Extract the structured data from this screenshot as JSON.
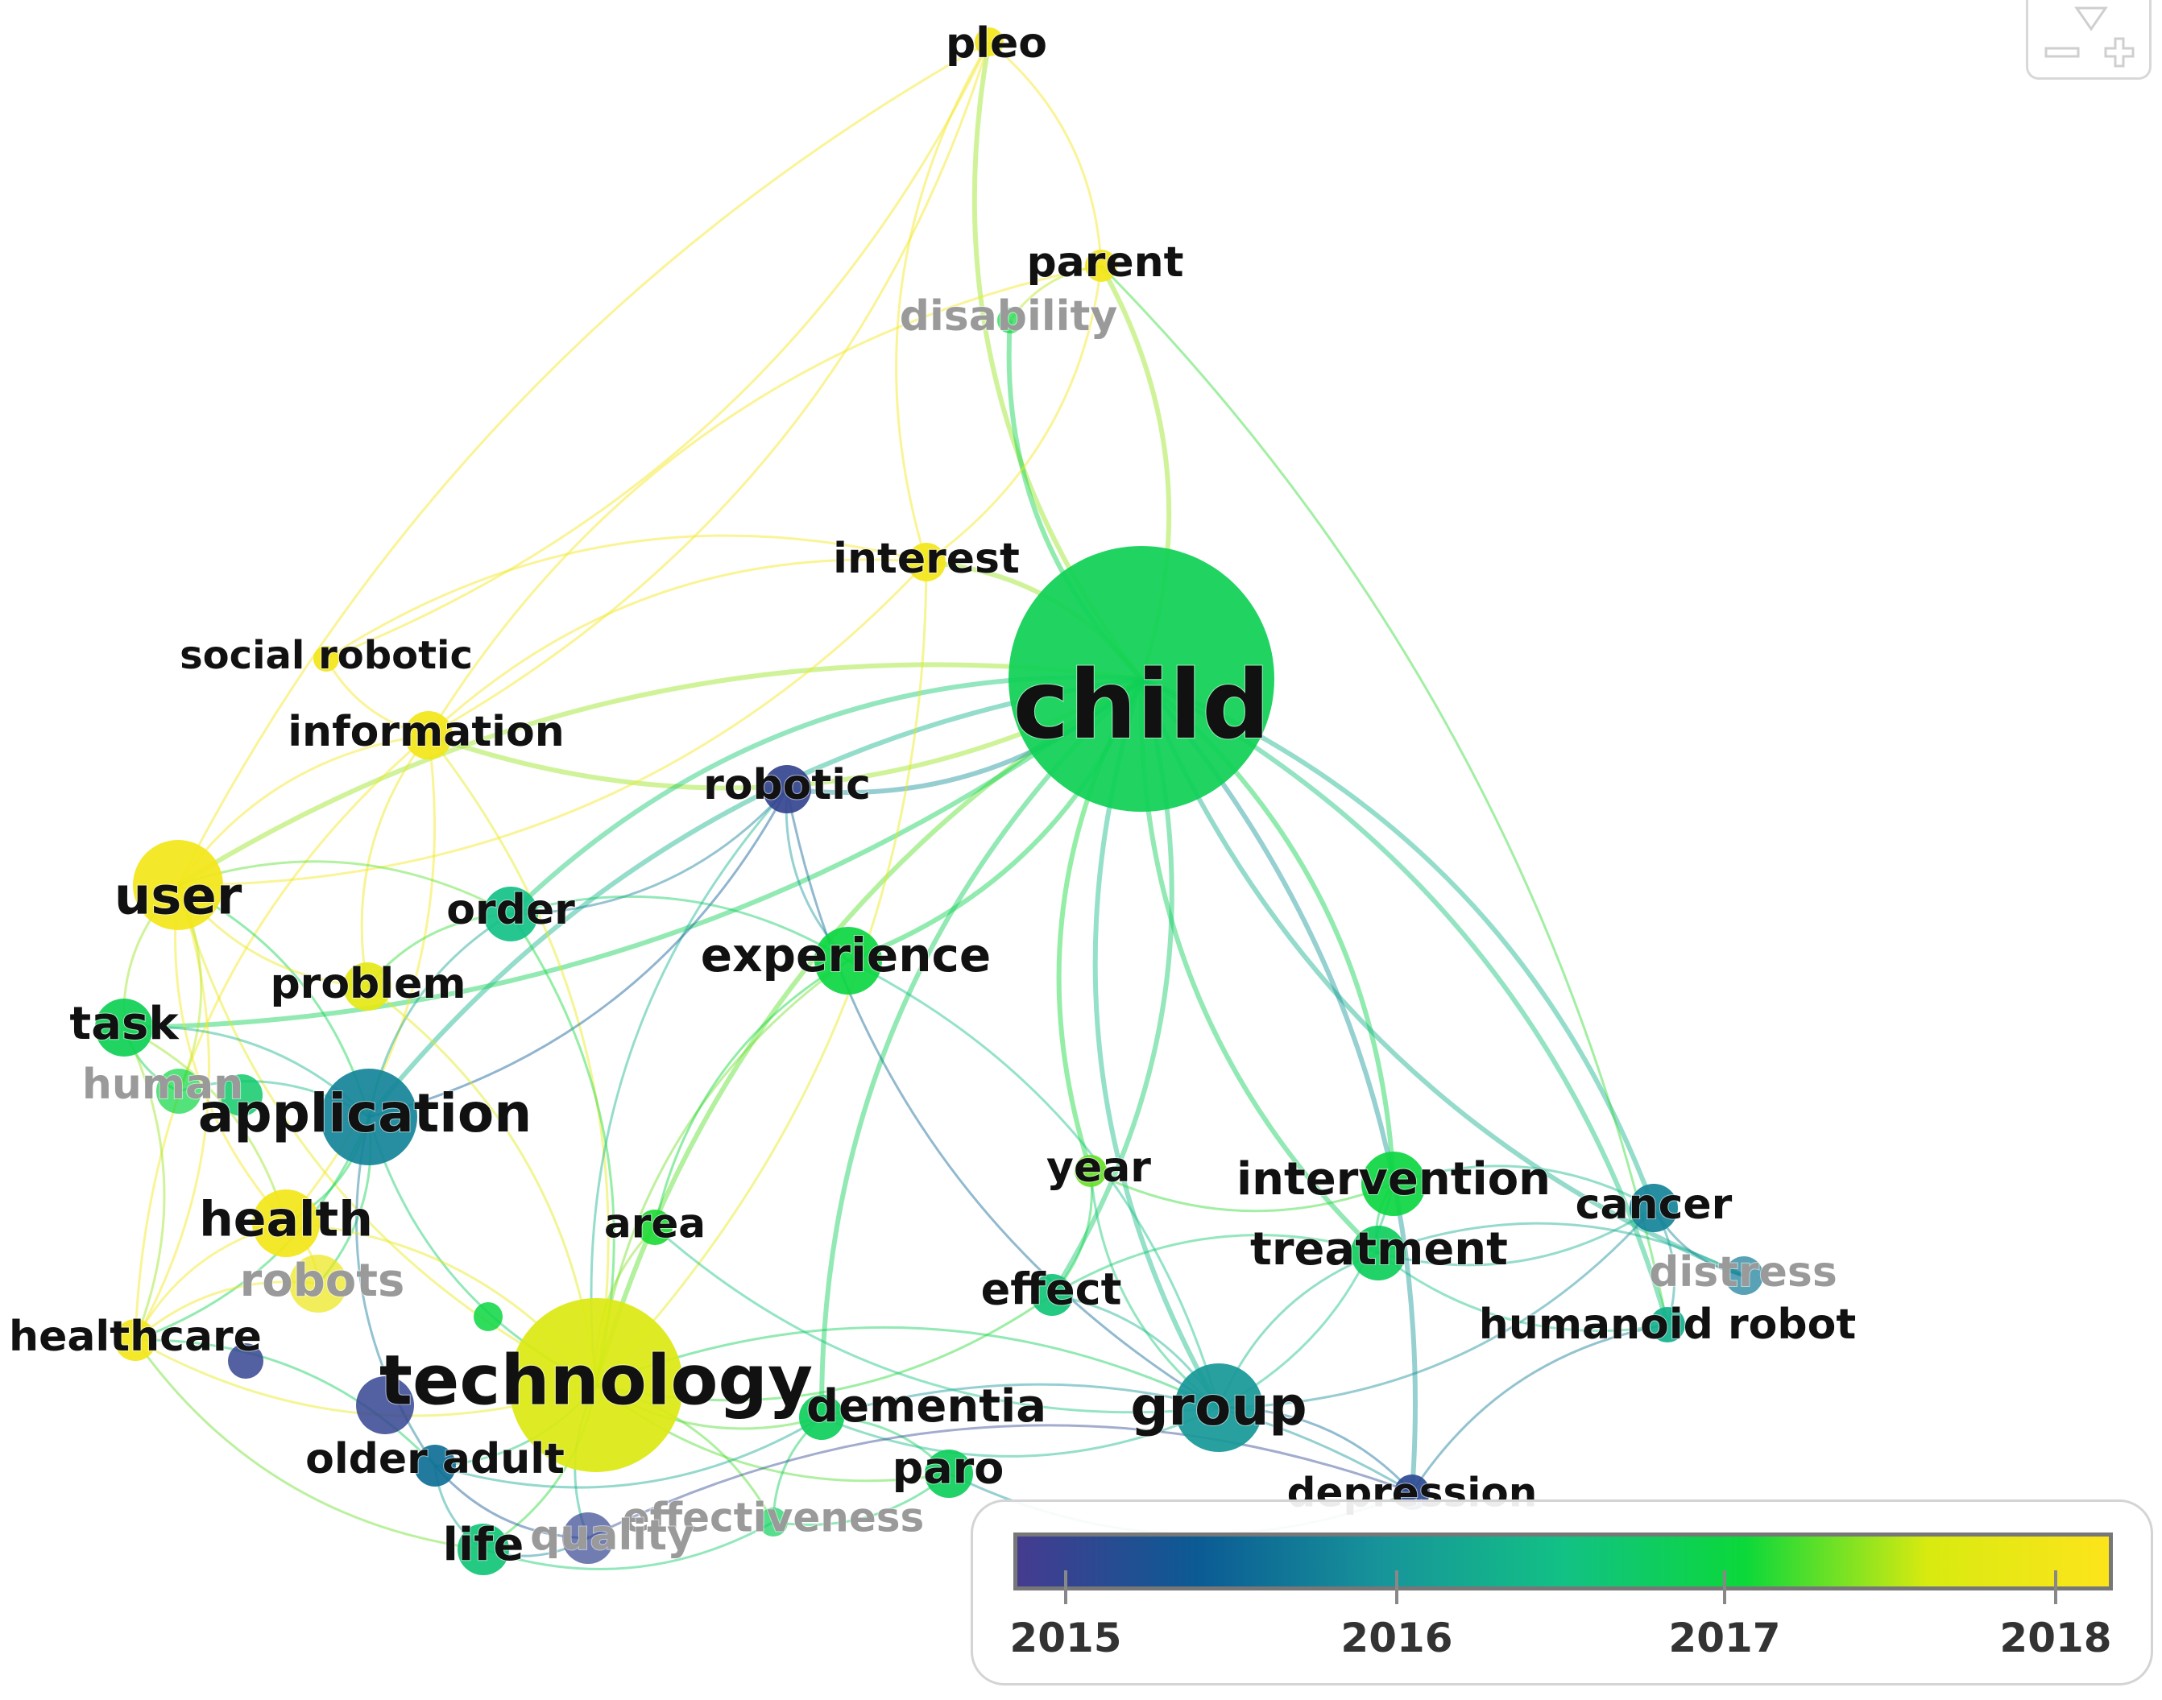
{
  "nodes": [
    {
      "id": "pleo",
      "label": "pleo",
      "year": 2018.0,
      "faded": false
    },
    {
      "id": "parent",
      "label": "parent",
      "year": 2018.0,
      "faded": false
    },
    {
      "id": "disability",
      "label": "disability",
      "year": 2017.0,
      "faded": true
    },
    {
      "id": "interest",
      "label": "interest",
      "year": 2018.0,
      "faded": false
    },
    {
      "id": "child",
      "label": "child",
      "year": 2016.85,
      "faded": false
    },
    {
      "id": "social-robotic",
      "label": "social robotic",
      "year": 2018.0,
      "faded": false
    },
    {
      "id": "information",
      "label": "information",
      "year": 2018.0,
      "faded": false
    },
    {
      "id": "robotic",
      "label": "robotic",
      "year": 2015.0,
      "faded": false
    },
    {
      "id": "user",
      "label": "user",
      "year": 2018.0,
      "faded": false
    },
    {
      "id": "order",
      "label": "order",
      "year": 2016.5,
      "faded": false
    },
    {
      "id": "experience",
      "label": "experience",
      "year": 2017.0,
      "faded": false
    },
    {
      "id": "problem",
      "label": "problem",
      "year": 2017.8,
      "faded": false
    },
    {
      "id": "task",
      "label": "task",
      "year": 2016.85,
      "faded": false
    },
    {
      "id": "human",
      "label": "human",
      "year": 2017.0,
      "faded": true
    },
    {
      "id": "application",
      "label": "application",
      "year": 2015.8,
      "faded": false
    },
    {
      "id": "year",
      "label": "year",
      "year": 2017.3,
      "faded": false
    },
    {
      "id": "intervention",
      "label": "intervention",
      "year": 2017.0,
      "faded": false
    },
    {
      "id": "cancer",
      "label": "cancer",
      "year": 2015.8,
      "faded": false
    },
    {
      "id": "health",
      "label": "health",
      "year": 2018.0,
      "faded": false
    },
    {
      "id": "area",
      "label": "area",
      "year": 2017.1,
      "faded": false
    },
    {
      "id": "treatment",
      "label": "treatment",
      "year": 2016.8,
      "faded": false
    },
    {
      "id": "distress",
      "label": "distress",
      "year": 2015.7,
      "faded": true
    },
    {
      "id": "robots",
      "label": "robots",
      "year": 2017.9,
      "faded": true
    },
    {
      "id": "effect",
      "label": "effect",
      "year": 2016.6,
      "faded": false
    },
    {
      "id": "humanoid-robot",
      "label": "humanoid robot",
      "year": 2016.3,
      "faded": false
    },
    {
      "id": "healthcare",
      "label": "healthcare",
      "year": 2018.0,
      "faded": false
    },
    {
      "id": "technology",
      "label": "technology",
      "year": 2017.65,
      "faded": false
    },
    {
      "id": "dementia",
      "label": "dementia",
      "year": 2016.8,
      "faded": false
    },
    {
      "id": "group",
      "label": "group",
      "year": 2016.0,
      "faded": false
    },
    {
      "id": "older-adult",
      "label": "older adult",
      "year": 2015.6,
      "faded": false
    },
    {
      "id": "paro",
      "label": "paro",
      "year": 2016.8,
      "faded": false
    },
    {
      "id": "depression",
      "label": "depression",
      "year": 2015.1,
      "faded": false
    },
    {
      "id": "effectiveness",
      "label": "effectiveness",
      "year": 2016.8,
      "faded": true
    },
    {
      "id": "quality",
      "label": "quality",
      "year": 2015.0,
      "faded": true
    },
    {
      "id": "life",
      "label": "life",
      "year": 2016.6,
      "faded": false
    }
  ],
  "links": [
    [
      "child",
      "pleo"
    ],
    [
      "child",
      "parent"
    ],
    [
      "child",
      "disability"
    ],
    [
      "child",
      "interest"
    ],
    [
      "child",
      "experience"
    ],
    [
      "child",
      "technology"
    ],
    [
      "child",
      "intervention"
    ],
    [
      "child",
      "treatment"
    ],
    [
      "child",
      "cancer"
    ],
    [
      "child",
      "distress"
    ],
    [
      "child",
      "humanoid-robot"
    ],
    [
      "child",
      "group"
    ],
    [
      "child",
      "effect"
    ],
    [
      "child",
      "year"
    ],
    [
      "child",
      "robotic"
    ],
    [
      "child",
      "user"
    ],
    [
      "child",
      "information"
    ],
    [
      "child",
      "application"
    ],
    [
      "child",
      "depression"
    ],
    [
      "child",
      "dementia"
    ],
    [
      "child",
      "task"
    ],
    [
      "child",
      "order"
    ],
    [
      "pleo",
      "parent"
    ],
    [
      "pleo",
      "interest"
    ],
    [
      "pleo",
      "social-robotic"
    ],
    [
      "pleo",
      "user"
    ],
    [
      "pleo",
      "information"
    ],
    [
      "parent",
      "disability"
    ],
    [
      "parent",
      "interest"
    ],
    [
      "parent",
      "information"
    ],
    [
      "parent",
      "humanoid-robot"
    ],
    [
      "interest",
      "information"
    ],
    [
      "interest",
      "user"
    ],
    [
      "interest",
      "social-robotic"
    ],
    [
      "interest",
      "technology"
    ],
    [
      "information",
      "user"
    ],
    [
      "information",
      "social-robotic"
    ],
    [
      "information",
      "problem"
    ],
    [
      "information",
      "health"
    ],
    [
      "information",
      "healthcare"
    ],
    [
      "information",
      "technology"
    ],
    [
      "user",
      "task"
    ],
    [
      "user",
      "application"
    ],
    [
      "user",
      "health"
    ],
    [
      "user",
      "healthcare"
    ],
    [
      "user",
      "technology"
    ],
    [
      "user",
      "order"
    ],
    [
      "user",
      "problem"
    ],
    [
      "user",
      "human"
    ],
    [
      "robotic",
      "technology"
    ],
    [
      "robotic",
      "application"
    ],
    [
      "robotic",
      "experience"
    ],
    [
      "robotic",
      "order"
    ],
    [
      "robotic",
      "group"
    ],
    [
      "order",
      "technology"
    ],
    [
      "order",
      "application"
    ],
    [
      "order",
      "experience"
    ],
    [
      "experience",
      "technology"
    ],
    [
      "experience",
      "group"
    ],
    [
      "application",
      "technology"
    ],
    [
      "application",
      "health"
    ],
    [
      "application",
      "task"
    ],
    [
      "application",
      "robots"
    ],
    [
      "application",
      "human"
    ],
    [
      "application",
      "healthcare"
    ],
    [
      "application",
      "older-adult"
    ],
    [
      "health",
      "technology"
    ],
    [
      "health",
      "healthcare"
    ],
    [
      "health",
      "robots"
    ],
    [
      "healthcare",
      "technology"
    ],
    [
      "healthcare",
      "older-adult"
    ],
    [
      "healthcare",
      "life"
    ],
    [
      "technology",
      "older-adult"
    ],
    [
      "technology",
      "dementia"
    ],
    [
      "technology",
      "life"
    ],
    [
      "technology",
      "quality"
    ],
    [
      "technology",
      "group"
    ],
    [
      "technology",
      "effect"
    ],
    [
      "technology",
      "area"
    ],
    [
      "technology",
      "paro"
    ],
    [
      "technology",
      "effectiveness"
    ],
    [
      "technology",
      "problem"
    ],
    [
      "dementia",
      "paro"
    ],
    [
      "dementia",
      "group"
    ],
    [
      "dementia",
      "older-adult"
    ],
    [
      "dementia",
      "effectiveness"
    ],
    [
      "dementia",
      "depression"
    ],
    [
      "group",
      "intervention"
    ],
    [
      "group",
      "treatment"
    ],
    [
      "group",
      "effect"
    ],
    [
      "group",
      "depression"
    ],
    [
      "group",
      "cancer"
    ],
    [
      "group",
      "year"
    ],
    [
      "intervention",
      "treatment"
    ],
    [
      "intervention",
      "cancer"
    ],
    [
      "treatment",
      "cancer"
    ],
    [
      "treatment",
      "distress"
    ],
    [
      "cancer",
      "distress"
    ],
    [
      "cancer",
      "humanoid-robot"
    ],
    [
      "humanoid-robot",
      "depression"
    ],
    [
      "humanoid-robot",
      "treatment"
    ],
    [
      "effect",
      "year"
    ],
    [
      "effect",
      "treatment"
    ],
    [
      "life",
      "quality"
    ],
    [
      "life",
      "older-adult"
    ],
    [
      "life",
      "effectiveness"
    ],
    [
      "quality",
      "depression"
    ],
    [
      "older-adult",
      "quality"
    ],
    [
      "task",
      "health"
    ],
    [
      "task",
      "human"
    ],
    [
      "area",
      "experience"
    ],
    [
      "year",
      "intervention"
    ],
    [
      "paro",
      "effectiveness"
    ],
    [
      "paro",
      "depression"
    ],
    [
      "task",
      "healthcare"
    ],
    [
      "robots",
      "healthcare"
    ],
    [
      "problem",
      "order"
    ],
    [
      "area",
      "group"
    ]
  ],
  "legend": {
    "min_year": 2014.85,
    "max_year": 2018.15,
    "ticks": [
      "2015",
      "2016",
      "2017",
      "2018"
    ],
    "gradient_stops": [
      "#453b8f",
      "#0b5b94",
      "#17949a",
      "#12c185",
      "#0bd83a",
      "#d8ea10",
      "#fde41b"
    ]
  },
  "zoom_controls": {
    "collapse_icon": "triangle-down-icon",
    "zoom_out_icon": "minus-icon",
    "zoom_in_icon": "plus-icon"
  }
}
